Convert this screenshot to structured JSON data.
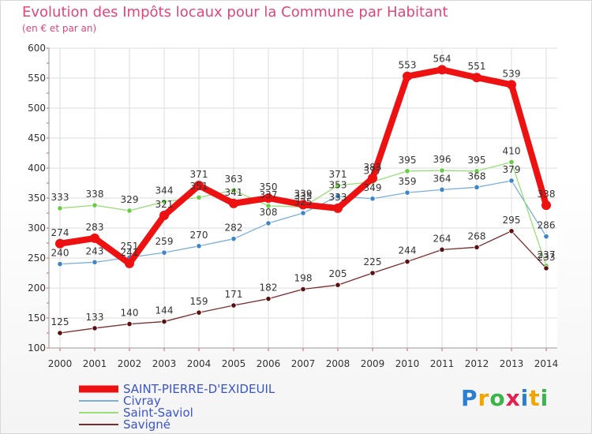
{
  "title": "Evolution des Impôts locaux pour la Commune par Habitant",
  "subtitle": "(en € et par an)",
  "logo": {
    "text": "Proxiti",
    "letters": [
      "P",
      "r",
      "o",
      "x",
      "i",
      "t",
      "i"
    ],
    "colors": [
      "#2a7fd0",
      "#f2a400",
      "#3ab54a",
      "#e3204f",
      "#2a7fd0",
      "#f2a400",
      "#3ab54a"
    ]
  },
  "chart_data": {
    "type": "line",
    "title": "Evolution des Impôts locaux pour la Commune par Habitant",
    "subtitle": "(en € et par an)",
    "xlabel": "",
    "ylabel": "",
    "categories": [
      "2000",
      "2001",
      "2002",
      "2003",
      "2004",
      "2005",
      "2006",
      "2007",
      "2008",
      "2009",
      "2010",
      "2011",
      "2012",
      "2013",
      "2014"
    ],
    "ylim": [
      100,
      600
    ],
    "yticks": [
      100,
      150,
      200,
      250,
      300,
      350,
      400,
      450,
      500,
      550,
      600
    ],
    "ytick_labels": [
      "100",
      "150",
      "200",
      "250",
      "300",
      "350",
      "400",
      "450",
      "500",
      "550",
      "600"
    ],
    "grid": true,
    "legend_position": "bottom-left",
    "series": [
      {
        "name": "SAINT-PIERRE-D'EXIDEUIL",
        "color": "#ee1111",
        "marker_color": "#ee1111",
        "emphasis": true,
        "values": [
          274,
          283,
          241,
          321,
          371,
          341,
          350,
          339,
          333,
          383,
          553,
          564,
          551,
          539,
          338
        ],
        "labels": [
          "274",
          "283",
          "241",
          "321",
          "371",
          "341",
          "350",
          "339",
          "333",
          "383",
          "553",
          "564",
          "551",
          "539",
          "338"
        ]
      },
      {
        "name": "Civray",
        "color": "#7aaedb",
        "marker_color": "#3a86c8",
        "emphasis": false,
        "values": [
          240,
          243,
          251,
          259,
          270,
          282,
          308,
          325,
          353,
          349,
          359,
          364,
          368,
          379,
          286
        ],
        "labels": [
          "240",
          "243",
          "251",
          "259",
          "270",
          "282",
          "308",
          "325",
          "353",
          "349",
          "359",
          "364",
          "368",
          "379",
          "286"
        ]
      },
      {
        "name": "Saint-Saviol",
        "color": "#99dd77",
        "marker_color": "#66cc44",
        "emphasis": false,
        "values": [
          333,
          338,
          329,
          344,
          351,
          363,
          337,
          335,
          371,
          377,
          395,
          396,
          395,
          410,
          237
        ],
        "labels": [
          "333",
          "338",
          "329",
          "344",
          "351",
          "363",
          "337",
          "335",
          "371",
          "377",
          "395",
          "396",
          "395",
          "410",
          "237"
        ]
      },
      {
        "name": "Savigné",
        "color": "#7a2a2a",
        "marker_color": "#5a1010",
        "emphasis": false,
        "values": [
          125,
          133,
          140,
          144,
          159,
          171,
          182,
          198,
          205,
          225,
          244,
          264,
          268,
          295,
          233
        ],
        "labels": [
          "125",
          "133",
          "140",
          "144",
          "159",
          "171",
          "182",
          "198",
          "205",
          "225",
          "244",
          "264",
          "268",
          "295",
          "233"
        ]
      }
    ]
  }
}
